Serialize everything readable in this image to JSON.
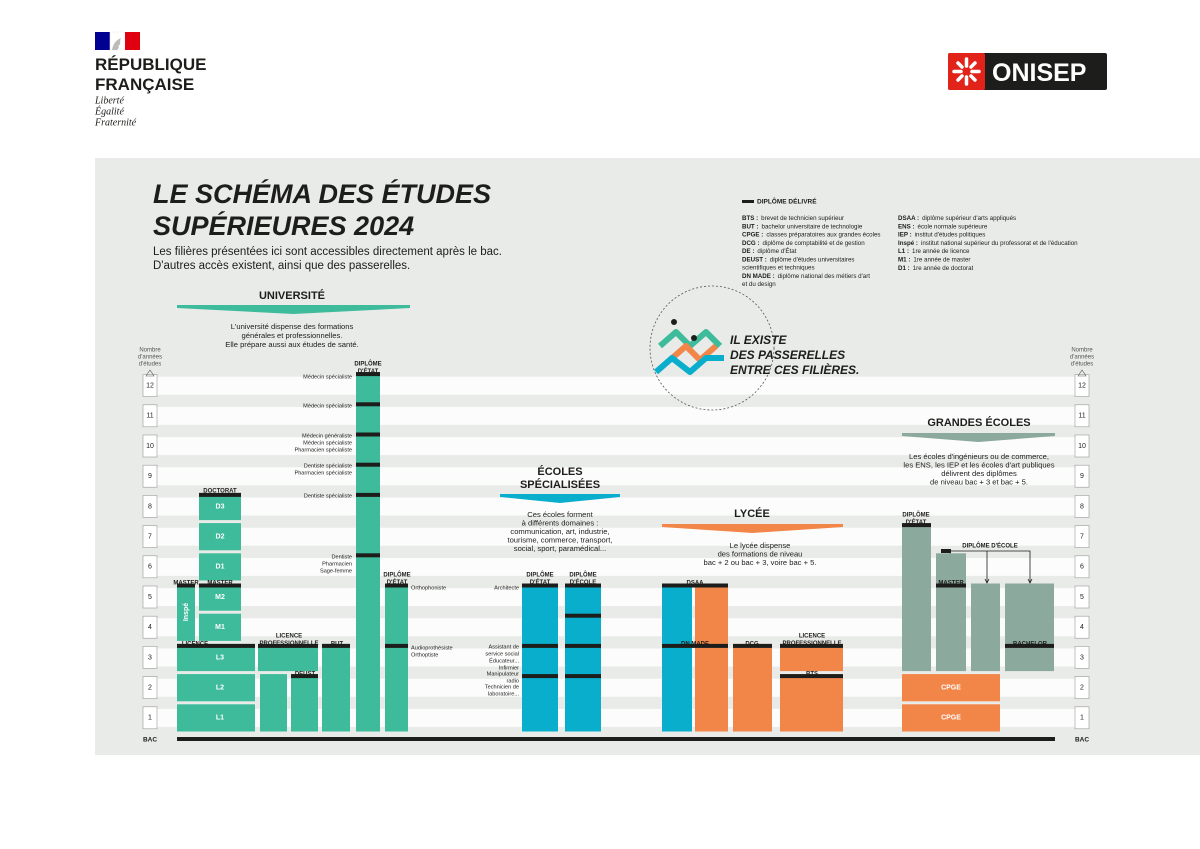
{
  "header": {
    "republic": [
      "RÉPUBLIQUE",
      "FRANÇAISE"
    ],
    "motto": [
      "Liberté",
      "Égalité",
      "Fraternité"
    ],
    "brand": "ONISEP"
  },
  "title": [
    "LE SCHÉMA DES ÉTUDES",
    "SUPÉRIEURES 2024"
  ],
  "intro": [
    "Les filières présentées ici sont accessibles directement après le bac.",
    "D'autres accès existent, ainsi que des passerelles."
  ],
  "legend": {
    "key": "DIPLÔME DÉLIVRÉ",
    "left": [
      {
        "abbr": "BTS :",
        "text": [
          "brevet de technicien supérieur"
        ]
      },
      {
        "abbr": "BUT :",
        "text": [
          "bachelor universitaire de technologie"
        ]
      },
      {
        "abbr": "CPGE :",
        "text": [
          "classes préparatoires aux grandes écoles"
        ]
      },
      {
        "abbr": "DCG :",
        "text": [
          "diplôme de comptabilité et de gestion"
        ]
      },
      {
        "abbr": "DE :",
        "text": [
          "diplôme d'État"
        ]
      },
      {
        "abbr": "DEUST :",
        "text": [
          "diplôme d'études universitaires",
          "scientifiques et techniques"
        ]
      },
      {
        "abbr": "DN MADE :",
        "text": [
          "diplôme national des métiers d'art",
          "et du design"
        ]
      }
    ],
    "right": [
      {
        "abbr": "DSAA :",
        "text": [
          "diplôme supérieur d'arts appliqués"
        ]
      },
      {
        "abbr": "ENS :",
        "text": [
          "école normale supérieure"
        ]
      },
      {
        "abbr": "IEP :",
        "text": [
          "institut d'études politiques"
        ]
      },
      {
        "abbr": "Inspé :",
        "text": [
          "institut national supérieur du professorat et de l'éducation"
        ]
      },
      {
        "abbr": "L1 :",
        "text": [
          "1re année de licence"
        ]
      },
      {
        "abbr": "M1 :",
        "text": [
          "1re année de master"
        ]
      },
      {
        "abbr": "D1 :",
        "text": [
          "1re année de doctorat"
        ]
      }
    ]
  },
  "passerelles": [
    "IL EXISTE",
    "DES PASSERELLES",
    "ENTRE CES FILIÈRES."
  ],
  "axis": {
    "label": [
      "Nombre",
      "d'années",
      "d'études"
    ],
    "years": [
      1,
      2,
      3,
      4,
      5,
      6,
      7,
      8,
      9,
      10,
      11,
      12
    ],
    "bac": "BAC"
  },
  "universite": {
    "heading": "UNIVERSITÉ",
    "desc": [
      "L'université dispense des formations",
      "générales et professionnelles.",
      "Elle prépare aussi aux études de santé."
    ],
    "labels": [
      "MASTER",
      "MASTER",
      "DOCTORAT",
      "D3",
      "D2",
      "D1",
      "M2",
      "M1",
      "L3",
      "L2",
      "L1",
      "LICENCE",
      [
        "LICENCE",
        "PROFESSIONNELLE"
      ],
      "DEUST",
      "BUT",
      "Inspé",
      [
        "DIPLÔME",
        "D'ÉTAT"
      ],
      [
        "DIPLÔME",
        "D'ÉTAT"
      ],
      "Médecin spécialiste",
      "Médecin spécialiste",
      [
        "Médecin généraliste",
        "Médecin spécialiste",
        "Pharmacien spécialiste"
      ],
      [
        "Dentiste spécialiste",
        "Pharmacien spécialiste"
      ],
      "Dentiste spécialiste",
      [
        "Dentiste",
        "Pharmacien",
        "Sage-femme"
      ],
      "Orthophoniste",
      [
        "Audioprothésiste",
        "Orthoptiste"
      ]
    ]
  },
  "ecoles": {
    "heading": [
      "ÉCOLES",
      "SPÉCIALISÉES"
    ],
    "desc": [
      "Ces écoles forment",
      "à différents domaines :",
      "communication, art, industrie,",
      "tourisme, commerce, transport,",
      "social, sport, paramédical..."
    ],
    "labels": [
      [
        "DIPLÔME",
        "D'ÉTAT"
      ],
      [
        "DIPLÔME",
        "D'ÉCOLE"
      ],
      "Architecte",
      [
        "Assistant de",
        "service social",
        "Éducateur...",
        "Infirmier"
      ],
      [
        "Manipulateur",
        "radio"
      ],
      [
        "Technicien de",
        "laboratoire..."
      ]
    ]
  },
  "lycee": {
    "heading": "LYCÉE",
    "desc": [
      "Le lycée dispense",
      "des formations de niveau",
      "bac + 2 ou bac + 3, voire bac + 5."
    ],
    "labels": [
      "DSAA",
      "DN MADE",
      "DCG",
      [
        "LICENCE",
        "PROFESSIONNELLE"
      ],
      "BTS"
    ]
  },
  "grandes_ecoles": {
    "heading": "GRANDES ÉCOLES",
    "desc": [
      "Les écoles d'ingénieurs ou de commerce,",
      "les ENS, les IEP et les écoles d'art publiques",
      "délivrent des diplômes",
      "de niveau bac + 3 et bac + 5."
    ],
    "labels": [
      [
        "DIPLÔME",
        "D'ÉTAT"
      ],
      "DIPLÔME D'ÉCOLE",
      "MASTER",
      "BACHELOR",
      "CPGE",
      "CPGE"
    ]
  }
}
